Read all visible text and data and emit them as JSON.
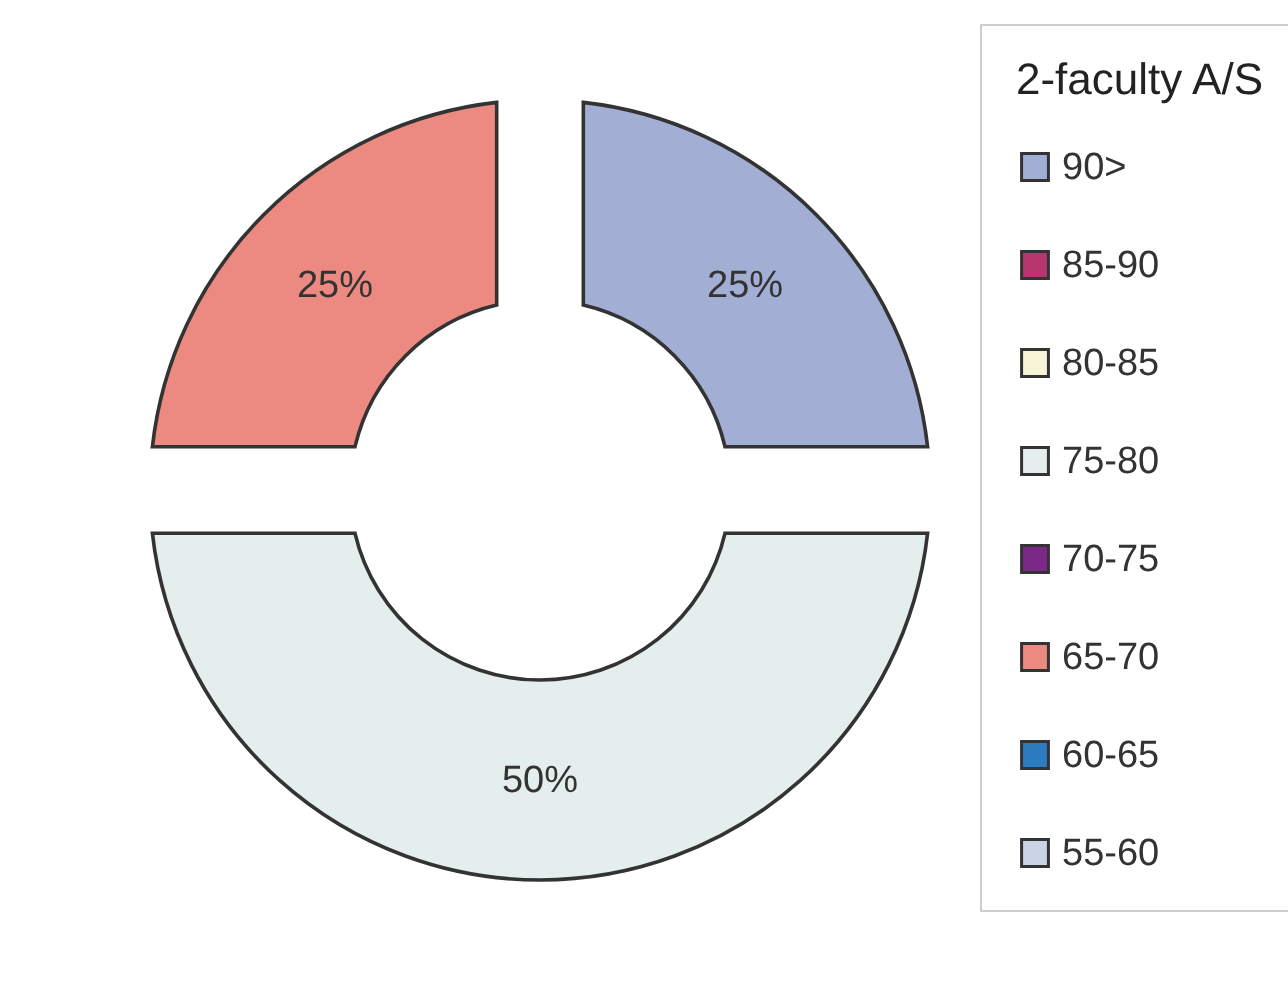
{
  "chart_data": {
    "type": "donut",
    "legend_title": "2-faculty A/S",
    "categories": [
      "90>",
      "85-90",
      "80-85",
      "75-80",
      "70-75",
      "65-70",
      "60-65",
      "55-60"
    ],
    "values": [
      25,
      0,
      0,
      50,
      0,
      25,
      0,
      0
    ],
    "colors": [
      "#a2aed4",
      "#b8366e",
      "#f8f4d8",
      "#e4eeec",
      "#7a2a86",
      "#ec8a82",
      "#2e7cc0",
      "#cad4e4"
    ],
    "value_labels": [
      "25%",
      null,
      null,
      "50%",
      null,
      "25%",
      null,
      null
    ],
    "legend": "right"
  }
}
